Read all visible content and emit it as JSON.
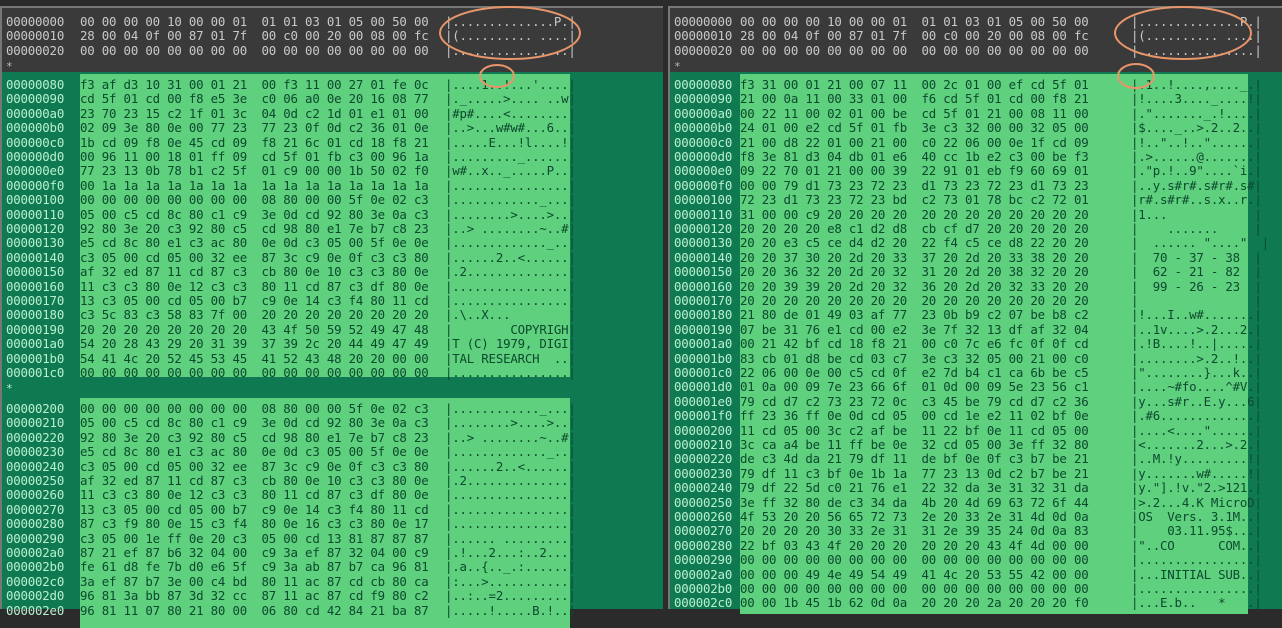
{
  "colors": {
    "header_bg": "#3a3a3a",
    "pane_bg": "#0f7a52",
    "highlight_bg": "#5fd07e",
    "annotation": "#e8956a"
  },
  "repeat_marker": "*",
  "left": {
    "header_rows": [
      {
        "offset": "00000000",
        "hex": "00 00 00 00 10 00 00 01  01 01 03 01 05 00 50 00",
        "ascii": "|..............P.|"
      },
      {
        "offset": "00000010",
        "hex": "28 00 04 0f 00 87 01 7f  00 c0 00 20 00 08 00 fc",
        "ascii": "|(.......... ....|"
      },
      {
        "offset": "00000020",
        "hex": "00 00 00 00 00 00 00 00  00 00 00 00 00 00 00 00",
        "ascii": "|................|"
      }
    ],
    "section1": [
      {
        "offset": "00000080",
        "hex": "f3 af d3 10 31 00 01 21  00 f3 11 00 27 01 fe 0c",
        "ascii": "|....1..!...'....|"
      },
      {
        "offset": "00000090",
        "hex": "cd 5f 01 cd 00 f8 e5 3e  c0 06 a0 0e 20 16 08 77",
        "ascii": "|._.....>.... ..w|"
      },
      {
        "offset": "000000a0",
        "hex": "23 70 23 15 c2 1f 01 3c  04 0d c2 1d 01 e1 01 00",
        "ascii": "|#p#....<........|"
      },
      {
        "offset": "000000b0",
        "hex": "02 09 3e 80 0e 00 77 23  77 23 0f 0d c2 36 01 0e",
        "ascii": "|..>...w#w#...6..|"
      },
      {
        "offset": "000000c0",
        "hex": "1b cd 09 f8 0e 45 cd 09  f8 21 6c 01 cd 18 f8 21",
        "ascii": "|.....E...!l....!|"
      },
      {
        "offset": "000000d0",
        "hex": "00 96 11 00 18 01 ff 09  cd 5f 01 fb c3 00 96 1a",
        "ascii": "|........._......|"
      },
      {
        "offset": "000000e0",
        "hex": "77 23 13 0b 78 b1 c2 5f  01 c9 00 00 1b 50 02 f0",
        "ascii": "|w#..x.._.....P..|"
      },
      {
        "offset": "000000f0",
        "hex": "00 1a 1a 1a 1a 1a 1a 1a  1a 1a 1a 1a 1a 1a 1a 1a",
        "ascii": "|................|"
      },
      {
        "offset": "00000100",
        "hex": "00 00 00 00 00 00 00 00  08 80 00 00 5f 0e 02 c3",
        "ascii": "|............_...|"
      },
      {
        "offset": "00000110",
        "hex": "05 00 c5 cd 8c 80 c1 c9  3e 0d cd 92 80 3e 0a c3",
        "ascii": "|........>....>..|"
      },
      {
        "offset": "00000120",
        "hex": "92 80 3e 20 c3 92 80 c5  cd 98 80 e1 7e b7 c8 23",
        "ascii": "|..> ........~..#|"
      },
      {
        "offset": "00000130",
        "hex": "e5 cd 8c 80 e1 c3 ac 80  0e 0d c3 05 00 5f 0e 0e",
        "ascii": "|............._..|"
      },
      {
        "offset": "00000140",
        "hex": "c3 05 00 cd 05 00 32 ee  87 3c c9 0e 0f c3 c3 80",
        "ascii": "|......2..<......|"
      },
      {
        "offset": "00000150",
        "hex": "af 32 ed 87 11 cd 87 c3  cb 80 0e 10 c3 c3 80 0e",
        "ascii": "|.2..............|"
      },
      {
        "offset": "00000160",
        "hex": "11 c3 c3 80 0e 12 c3 c3  80 11 cd 87 c3 df 80 0e",
        "ascii": "|................|"
      },
      {
        "offset": "00000170",
        "hex": "13 c3 05 00 cd 05 00 b7  c9 0e 14 c3 f4 80 11 cd",
        "ascii": "|................|"
      },
      {
        "offset": "00000180",
        "hex": "c3 5c 83 c3 58 83 7f 00  20 20 20 20 20 20 20 20",
        "ascii": "|.\\..X...        |"
      },
      {
        "offset": "00000190",
        "hex": "20 20 20 20 20 20 20 20  43 4f 50 59 52 49 47 48",
        "ascii": "|        COPYRIGH|"
      },
      {
        "offset": "000001a0",
        "hex": "54 20 28 43 29 20 31 39  37 39 2c 20 44 49 47 49",
        "ascii": "|T (C) 1979, DIGI|"
      },
      {
        "offset": "000001b0",
        "hex": "54 41 4c 20 52 45 53 45  41 52 43 48 20 20 00 00",
        "ascii": "|TAL RESEARCH  ..|"
      },
      {
        "offset": "000001c0",
        "hex": "00 00 00 00 00 00 00 00  00 00 00 00 00 00 00 00",
        "ascii": "|................|"
      }
    ],
    "section2": [
      {
        "offset": "00000200",
        "hex": "00 00 00 00 00 00 00 00  08 80 00 00 5f 0e 02 c3",
        "ascii": "|............_...|"
      },
      {
        "offset": "00000210",
        "hex": "05 00 c5 cd 8c 80 c1 c9  3e 0d cd 92 80 3e 0a c3",
        "ascii": "|........>....>..|"
      },
      {
        "offset": "00000220",
        "hex": "92 80 3e 20 c3 92 80 c5  cd 98 80 e1 7e b7 c8 23",
        "ascii": "|..> ........~..#|"
      },
      {
        "offset": "00000230",
        "hex": "e5 cd 8c 80 e1 c3 ac 80  0e 0d c3 05 00 5f 0e 0e",
        "ascii": "|............._..|"
      },
      {
        "offset": "00000240",
        "hex": "c3 05 00 cd 05 00 32 ee  87 3c c9 0e 0f c3 c3 80",
        "ascii": "|......2..<......|"
      },
      {
        "offset": "00000250",
        "hex": "af 32 ed 87 11 cd 87 c3  cb 80 0e 10 c3 c3 80 0e",
        "ascii": "|.2..............|"
      },
      {
        "offset": "00000260",
        "hex": "11 c3 c3 80 0e 12 c3 c3  80 11 cd 87 c3 df 80 0e",
        "ascii": "|................|"
      },
      {
        "offset": "00000270",
        "hex": "13 c3 05 00 cd 05 00 b7  c9 0e 14 c3 f4 80 11 cd",
        "ascii": "|................|"
      },
      {
        "offset": "00000280",
        "hex": "87 c3 f9 80 0e 15 c3 f4  80 0e 16 c3 c3 80 0e 17",
        "ascii": "|................|"
      },
      {
        "offset": "00000290",
        "hex": "c3 05 00 1e ff 0e 20 c3  05 00 cd 13 81 87 87 87",
        "ascii": "|...... .........|"
      },
      {
        "offset": "000002a0",
        "hex": "87 21 ef 87 b6 32 04 00  c9 3a ef 87 32 04 00 c9",
        "ascii": "|.!...2...:..2...|"
      },
      {
        "offset": "000002b0",
        "hex": "fe 61 d8 fe 7b d0 e6 5f  c9 3a ab 87 b7 ca 96 81",
        "ascii": "|.a..{.._.:......|"
      },
      {
        "offset": "000002c0",
        "hex": "3a ef 87 b7 3e 00 c4 bd  80 11 ac 87 cd cb 80 ca",
        "ascii": "|:...>...........|"
      },
      {
        "offset": "000002d0",
        "hex": "96 81 3a bb 87 3d 32 cc  87 11 ac 87 cd f9 80 c2",
        "ascii": "|..:..=2.........|"
      },
      {
        "offset": "000002e0",
        "hex": "96 81 11 07 80 21 80 00  06 80 cd 42 84 21 ba 87",
        "ascii": "|.....!.....B.!..|"
      }
    ]
  },
  "right": {
    "header_rows": [
      {
        "offset": "00000000",
        "hex": "00 00 00 00 10 00 00 01  01 01 03 01 05 00 50 00",
        "ascii": "|..............P.|"
      },
      {
        "offset": "00000010",
        "hex": "28 00 04 0f 00 87 01 7f  00 c0 00 20 00 08 00 fc",
        "ascii": "|(.......... ....|"
      },
      {
        "offset": "00000020",
        "hex": "00 00 00 00 00 00 00 00  00 00 00 00 00 00 00 00",
        "ascii": "|................|"
      }
    ],
    "section1": [
      {
        "offset": "00000080",
        "hex": "f3 31 00 01 21 00 07 11  00 2c 01 00 ef cd 5f 01",
        "ascii": "|.1..!....,...._.|"
      },
      {
        "offset": "00000090",
        "hex": "21 00 0a 11 00 33 01 00  f6 cd 5f 01 cd 00 f8 21",
        "ascii": "|!....3...._....!|"
      },
      {
        "offset": "000000a0",
        "hex": "00 22 11 00 02 01 00 be  cd 5f 01 21 00 08 11 00",
        "ascii": "|.\"......._.!....|"
      },
      {
        "offset": "000000b0",
        "hex": "24 01 00 e2 cd 5f 01 fb  3e c3 32 00 00 32 05 00",
        "ascii": "|$...._..>.2..2..|"
      },
      {
        "offset": "000000c0",
        "hex": "21 00 d8 22 01 00 21 00  c0 22 06 00 0e 1f cd 09",
        "ascii": "|!..\"..!..\"......|"
      },
      {
        "offset": "000000d0",
        "hex": "f8 3e 81 d3 04 db 01 e6  40 cc 1b e2 c3 00 be f3",
        "ascii": "|.>......@.......|"
      },
      {
        "offset": "000000e0",
        "hex": "09 22 70 01 21 00 00 39  22 91 01 eb f9 60 69 01",
        "ascii": "|.\"p.!..9\"....`i.|"
      },
      {
        "offset": "000000f0",
        "hex": "00 00 79 d1 73 23 72 23  d1 73 23 72 23 d1 73 23",
        "ascii": "|..y.s#r#.s#r#.s#|"
      },
      {
        "offset": "00000100",
        "hex": "72 23 d1 73 23 72 23 bd  c2 73 01 78 bc c2 72 01",
        "ascii": "|r#.s#r#..s.x..r.|"
      },
      {
        "offset": "00000110",
        "hex": "31 00 00 c9 20 20 20 20  20 20 20 20 20 20 20 20",
        "ascii": "|1...            |"
      },
      {
        "offset": "00000120",
        "hex": "20 20 20 20 e8 c1 d2 d8  cb cf d7 20 20 20 20 20",
        "ascii": "|    .......     |"
      },
      {
        "offset": "00000130",
        "hex": "20 20 e3 c5 ce d4 d2 20  22 f4 c5 ce d8 22 20 20",
        "ascii": "|  ...... \"....\"  |"
      },
      {
        "offset": "00000140",
        "hex": "20 20 37 30 20 2d 20 33  37 20 2d 20 33 38 20 20",
        "ascii": "|  70 - 37 - 38  |"
      },
      {
        "offset": "00000150",
        "hex": "20 20 36 32 20 2d 20 32  31 20 2d 20 38 32 20 20",
        "ascii": "|  62 - 21 - 82  |"
      },
      {
        "offset": "00000160",
        "hex": "20 20 39 39 20 2d 20 32  36 20 2d 20 32 33 20 20",
        "ascii": "|  99 - 26 - 23  |"
      },
      {
        "offset": "00000170",
        "hex": "20 20 20 20 20 20 20 20  20 20 20 20 20 20 20 20",
        "ascii": "|                |"
      },
      {
        "offset": "00000180",
        "hex": "21 80 de 01 49 03 af 77  23 0b b9 c2 07 be b8 c2",
        "ascii": "|!...I..w#.......|"
      },
      {
        "offset": "00000190",
        "hex": "07 be 31 76 e1 cd 00 e2  3e 7f 32 13 df af 32 04",
        "ascii": "|..1v....>.2...2.|"
      },
      {
        "offset": "000001a0",
        "hex": "00 21 42 bf cd 18 f8 21  00 c0 7c e6 fc 0f 0f cd",
        "ascii": "|.!B....!..|.....|"
      },
      {
        "offset": "000001b0",
        "hex": "83 cb 01 d8 be cd 03 c7  3e c3 32 05 00 21 00 c0",
        "ascii": "|........>.2..!..|"
      },
      {
        "offset": "000001c0",
        "hex": "22 06 00 0e 00 c5 cd 0f  e2 7d b4 c1 ca 6b be c5",
        "ascii": "|\"........}...k..|"
      },
      {
        "offset": "000001d0",
        "hex": "01 0a 00 09 7e 23 66 6f  01 0d 00 09 5e 23 56 c1",
        "ascii": "|....~#fo....^#V.|"
      },
      {
        "offset": "000001e0",
        "hex": "79 cd d7 c2 73 23 72 0c  c3 45 be 79 cd d7 c2 36",
        "ascii": "|y...s#r..E.y...6|"
      },
      {
        "offset": "000001f0",
        "hex": "ff 23 36 ff 0e 0d cd 05  00 cd 1e e2 11 02 bf 0e",
        "ascii": "|.#6.............|"
      },
      {
        "offset": "00000200",
        "hex": "11 cd 05 00 3c c2 af be  11 22 bf 0e 11 cd 05 00",
        "ascii": "|....<....\"......|"
      },
      {
        "offset": "00000210",
        "hex": "3c ca a4 be 11 ff be 0e  32 cd 05 00 3e ff 32 80",
        "ascii": "|<.......2...>.2.|"
      },
      {
        "offset": "00000220",
        "hex": "de c3 4d da 21 79 df 11  de bf 0e 0f c3 b7 be 21",
        "ascii": "|..M.!y.........!|"
      },
      {
        "offset": "00000230",
        "hex": "79 df 11 c3 bf 0e 1b 1a  77 23 13 0d c2 b7 be 21",
        "ascii": "|y.......w#.....!|"
      },
      {
        "offset": "00000240",
        "hex": "79 df 22 5d c0 21 76 e1  22 32 da 3e 31 32 31 da",
        "ascii": "|y.\"].!v.\"2.>121.|"
      },
      {
        "offset": "00000250",
        "hex": "3e ff 32 80 de c3 34 da  4b 20 4d 69 63 72 6f 44",
        "ascii": "|>.2...4.K MicroD|"
      },
      {
        "offset": "00000260",
        "hex": "4f 53 20 20 56 65 72 73  2e 20 33 2e 31 4d 0d 0a",
        "ascii": "|OS  Vers. 3.1M..|"
      },
      {
        "offset": "00000270",
        "hex": "20 20 20 20 30 33 2e 31  31 2e 39 35 24 0d 0a 83",
        "ascii": "|    03.11.95$...|"
      },
      {
        "offset": "00000280",
        "hex": "22 bf 03 43 4f 20 20 20  20 20 20 43 4f 4d 00 00",
        "ascii": "|\"..CO      COM..|"
      },
      {
        "offset": "00000290",
        "hex": "00 00 00 00 00 00 00 00  00 00 00 00 00 00 00 00",
        "ascii": "|................|"
      },
      {
        "offset": "000002a0",
        "hex": "00 00 00 49 4e 49 54 49  41 4c 20 53 55 42 00 00",
        "ascii": "|...INITIAL SUB..|"
      },
      {
        "offset": "000002b0",
        "hex": "00 00 00 00 00 00 00 00  00 00 00 00 00 00 00 00",
        "ascii": "|................|"
      },
      {
        "offset": "000002c0",
        "hex": "00 00 1b 45 1b 62 0d 0a  20 20 20 2a 20 20 20 f0",
        "ascii": "|...E.b..   *   .|"
      }
    ]
  }
}
